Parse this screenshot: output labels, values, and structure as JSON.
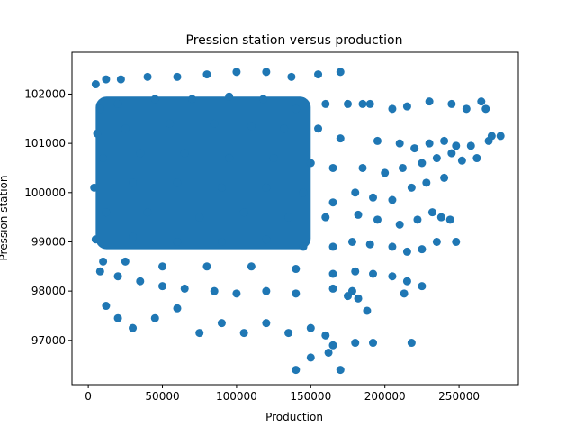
{
  "chart_data": {
    "type": "scatter",
    "title": "Pression station versus production",
    "xlabel": "Production",
    "ylabel": "Pression station",
    "xlim": [
      -11000,
      290000
    ],
    "ylim": [
      96100,
      102850
    ],
    "xticks": [
      0,
      50000,
      100000,
      150000,
      200000,
      250000
    ],
    "xtick_labels": [
      "0",
      "50000",
      "100000",
      "150000",
      "200000",
      "250000"
    ],
    "yticks": [
      97000,
      98000,
      99000,
      100000,
      101000,
      102000
    ],
    "ytick_labels": [
      "97000",
      "98000",
      "99000",
      "100000",
      "101000",
      "102000"
    ],
    "grid": false,
    "marker_color": "#1f77b4",
    "series": [
      {
        "points": [
          [
            5000,
            102200
          ],
          [
            12000,
            102300
          ],
          [
            22000,
            102300
          ],
          [
            40000,
            102350
          ],
          [
            60000,
            102350
          ],
          [
            80000,
            102400
          ],
          [
            100000,
            102450
          ],
          [
            120000,
            102450
          ],
          [
            137000,
            102350
          ],
          [
            155000,
            102400
          ],
          [
            170000,
            102450
          ],
          [
            8000,
            101700
          ],
          [
            20000,
            101800
          ],
          [
            45000,
            101900
          ],
          [
            70000,
            101900
          ],
          [
            95000,
            101950
          ],
          [
            118000,
            101900
          ],
          [
            140000,
            101700
          ],
          [
            160000,
            101800
          ],
          [
            175000,
            101800
          ],
          [
            185000,
            101800
          ],
          [
            6000,
            101200
          ],
          [
            25000,
            101300
          ],
          [
            55000,
            101400
          ],
          [
            85000,
            101400
          ],
          [
            110000,
            101350
          ],
          [
            132000,
            101300
          ],
          [
            155000,
            101300
          ],
          [
            170000,
            101100
          ],
          [
            10000,
            100700
          ],
          [
            35000,
            100800
          ],
          [
            65000,
            100800
          ],
          [
            95000,
            100700
          ],
          [
            125000,
            100700
          ],
          [
            150000,
            100600
          ],
          [
            165000,
            100500
          ],
          [
            4000,
            100100
          ],
          [
            30000,
            100200
          ],
          [
            60000,
            100200
          ],
          [
            90000,
            100100
          ],
          [
            120000,
            100100
          ],
          [
            145000,
            100000
          ],
          [
            165000,
            99800
          ],
          [
            12000,
            99600
          ],
          [
            40000,
            99600
          ],
          [
            75000,
            99500
          ],
          [
            105000,
            99600
          ],
          [
            135000,
            99500
          ],
          [
            160000,
            99500
          ],
          [
            5000,
            99050
          ],
          [
            30000,
            99100
          ],
          [
            60000,
            99000
          ],
          [
            90000,
            99000
          ],
          [
            120000,
            99050
          ],
          [
            145000,
            98900
          ],
          [
            165000,
            98900
          ],
          [
            10000,
            98600
          ],
          [
            25000,
            98600
          ],
          [
            50000,
            98500
          ],
          [
            80000,
            98500
          ],
          [
            110000,
            98500
          ],
          [
            140000,
            98450
          ],
          [
            165000,
            98350
          ],
          [
            8000,
            98400
          ],
          [
            20000,
            98300
          ],
          [
            35000,
            98200
          ],
          [
            50000,
            98100
          ],
          [
            65000,
            98050
          ],
          [
            85000,
            98000
          ],
          [
            100000,
            97950
          ],
          [
            120000,
            98000
          ],
          [
            140000,
            97950
          ],
          [
            165000,
            98050
          ],
          [
            178000,
            98000
          ],
          [
            12000,
            97700
          ],
          [
            20000,
            97450
          ],
          [
            30000,
            97250
          ],
          [
            45000,
            97450
          ],
          [
            60000,
            97650
          ],
          [
            75000,
            97150
          ],
          [
            90000,
            97350
          ],
          [
            105000,
            97150
          ],
          [
            120000,
            97350
          ],
          [
            135000,
            97150
          ],
          [
            150000,
            97250
          ],
          [
            160000,
            97100
          ],
          [
            140000,
            96400
          ],
          [
            170000,
            96400
          ],
          [
            150000,
            96650
          ],
          [
            165000,
            96900
          ],
          [
            162000,
            96750
          ],
          [
            190000,
            101800
          ],
          [
            205000,
            101700
          ],
          [
            215000,
            101750
          ],
          [
            230000,
            101850
          ],
          [
            245000,
            101800
          ],
          [
            255000,
            101700
          ],
          [
            265000,
            101850
          ],
          [
            268000,
            101700
          ],
          [
            195000,
            101050
          ],
          [
            210000,
            101000
          ],
          [
            220000,
            100900
          ],
          [
            230000,
            101000
          ],
          [
            240000,
            101050
          ],
          [
            248000,
            100950
          ],
          [
            258000,
            100950
          ],
          [
            270000,
            101050
          ],
          [
            278000,
            101150
          ],
          [
            272000,
            101150
          ],
          [
            185000,
            100500
          ],
          [
            200000,
            100400
          ],
          [
            212000,
            100500
          ],
          [
            225000,
            100600
          ],
          [
            235000,
            100700
          ],
          [
            245000,
            100800
          ],
          [
            252000,
            100650
          ],
          [
            262000,
            100700
          ],
          [
            180000,
            100000
          ],
          [
            192000,
            99900
          ],
          [
            205000,
            99850
          ],
          [
            218000,
            100100
          ],
          [
            228000,
            100200
          ],
          [
            240000,
            100300
          ],
          [
            182000,
            99550
          ],
          [
            195000,
            99450
          ],
          [
            210000,
            99350
          ],
          [
            222000,
            99450
          ],
          [
            232000,
            99600
          ],
          [
            238000,
            99500
          ],
          [
            244000,
            99450
          ],
          [
            178000,
            99000
          ],
          [
            190000,
            98950
          ],
          [
            205000,
            98900
          ],
          [
            215000,
            98800
          ],
          [
            225000,
            98850
          ],
          [
            235000,
            99000
          ],
          [
            248000,
            99000
          ],
          [
            180000,
            98400
          ],
          [
            192000,
            98350
          ],
          [
            205000,
            98300
          ],
          [
            215000,
            98200
          ],
          [
            225000,
            98100
          ],
          [
            213000,
            97950
          ],
          [
            175000,
            97900
          ],
          [
            182000,
            97850
          ],
          [
            188000,
            97600
          ],
          [
            192000,
            96950
          ],
          [
            180000,
            96950
          ],
          [
            218000,
            96950
          ]
        ]
      }
    ]
  }
}
